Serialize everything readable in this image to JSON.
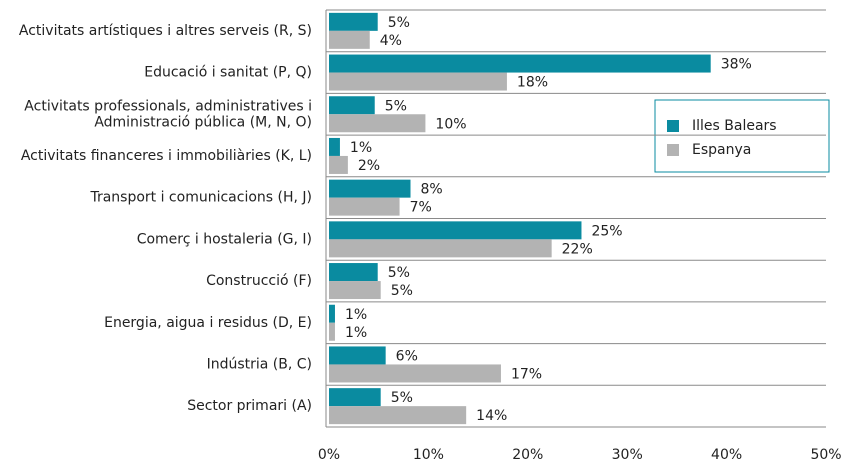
{
  "chart_data": {
    "type": "bar",
    "orientation": "horizontal",
    "categories": [
      "Activitats artístiques i altres serveis (R, S)",
      "Educació i sanitat (P, Q)",
      "Activitats professionals, administratives i\nAdministració pública (M, N, O)",
      "Activitats financeres i immobiliàries (K, L)",
      "Transport i comunicacions (H, J)",
      "Comerç i hostaleria (G, I)",
      "Construcció (F)",
      "Energia, aigua i residus (D, E)",
      "Indústria (B, C)",
      "Sector primari (A)"
    ],
    "series": [
      {
        "name": "Illes Balears",
        "color": "#0a8ba0",
        "values": [
          4.9,
          38.4,
          4.6,
          1.1,
          8.2,
          25.4,
          4.9,
          0.6,
          5.7,
          5.2
        ],
        "value_labels": [
          "5%",
          "38%",
          "5%",
          "1%",
          "8%",
          "25%",
          "5%",
          "1%",
          "6%",
          "5%"
        ]
      },
      {
        "name": "Espanya",
        "color": "#b3b3b3",
        "values": [
          4.1,
          17.9,
          9.7,
          1.9,
          7.1,
          22.4,
          5.2,
          0.6,
          17.3,
          13.8
        ],
        "value_labels": [
          "4%",
          "18%",
          "10%",
          "2%",
          "7%",
          "22%",
          "5%",
          "1%",
          "17%",
          "14%"
        ]
      }
    ],
    "xlim": [
      0,
      50
    ],
    "xticks": [
      {
        "value": 0,
        "label": "0%"
      },
      {
        "value": 10,
        "label": "10%"
      },
      {
        "value": 20,
        "label": "20%"
      },
      {
        "value": 30,
        "label": "30%"
      },
      {
        "value": 40,
        "label": "40%"
      },
      {
        "value": 50,
        "label": "50%"
      }
    ],
    "legend": "upper right"
  }
}
